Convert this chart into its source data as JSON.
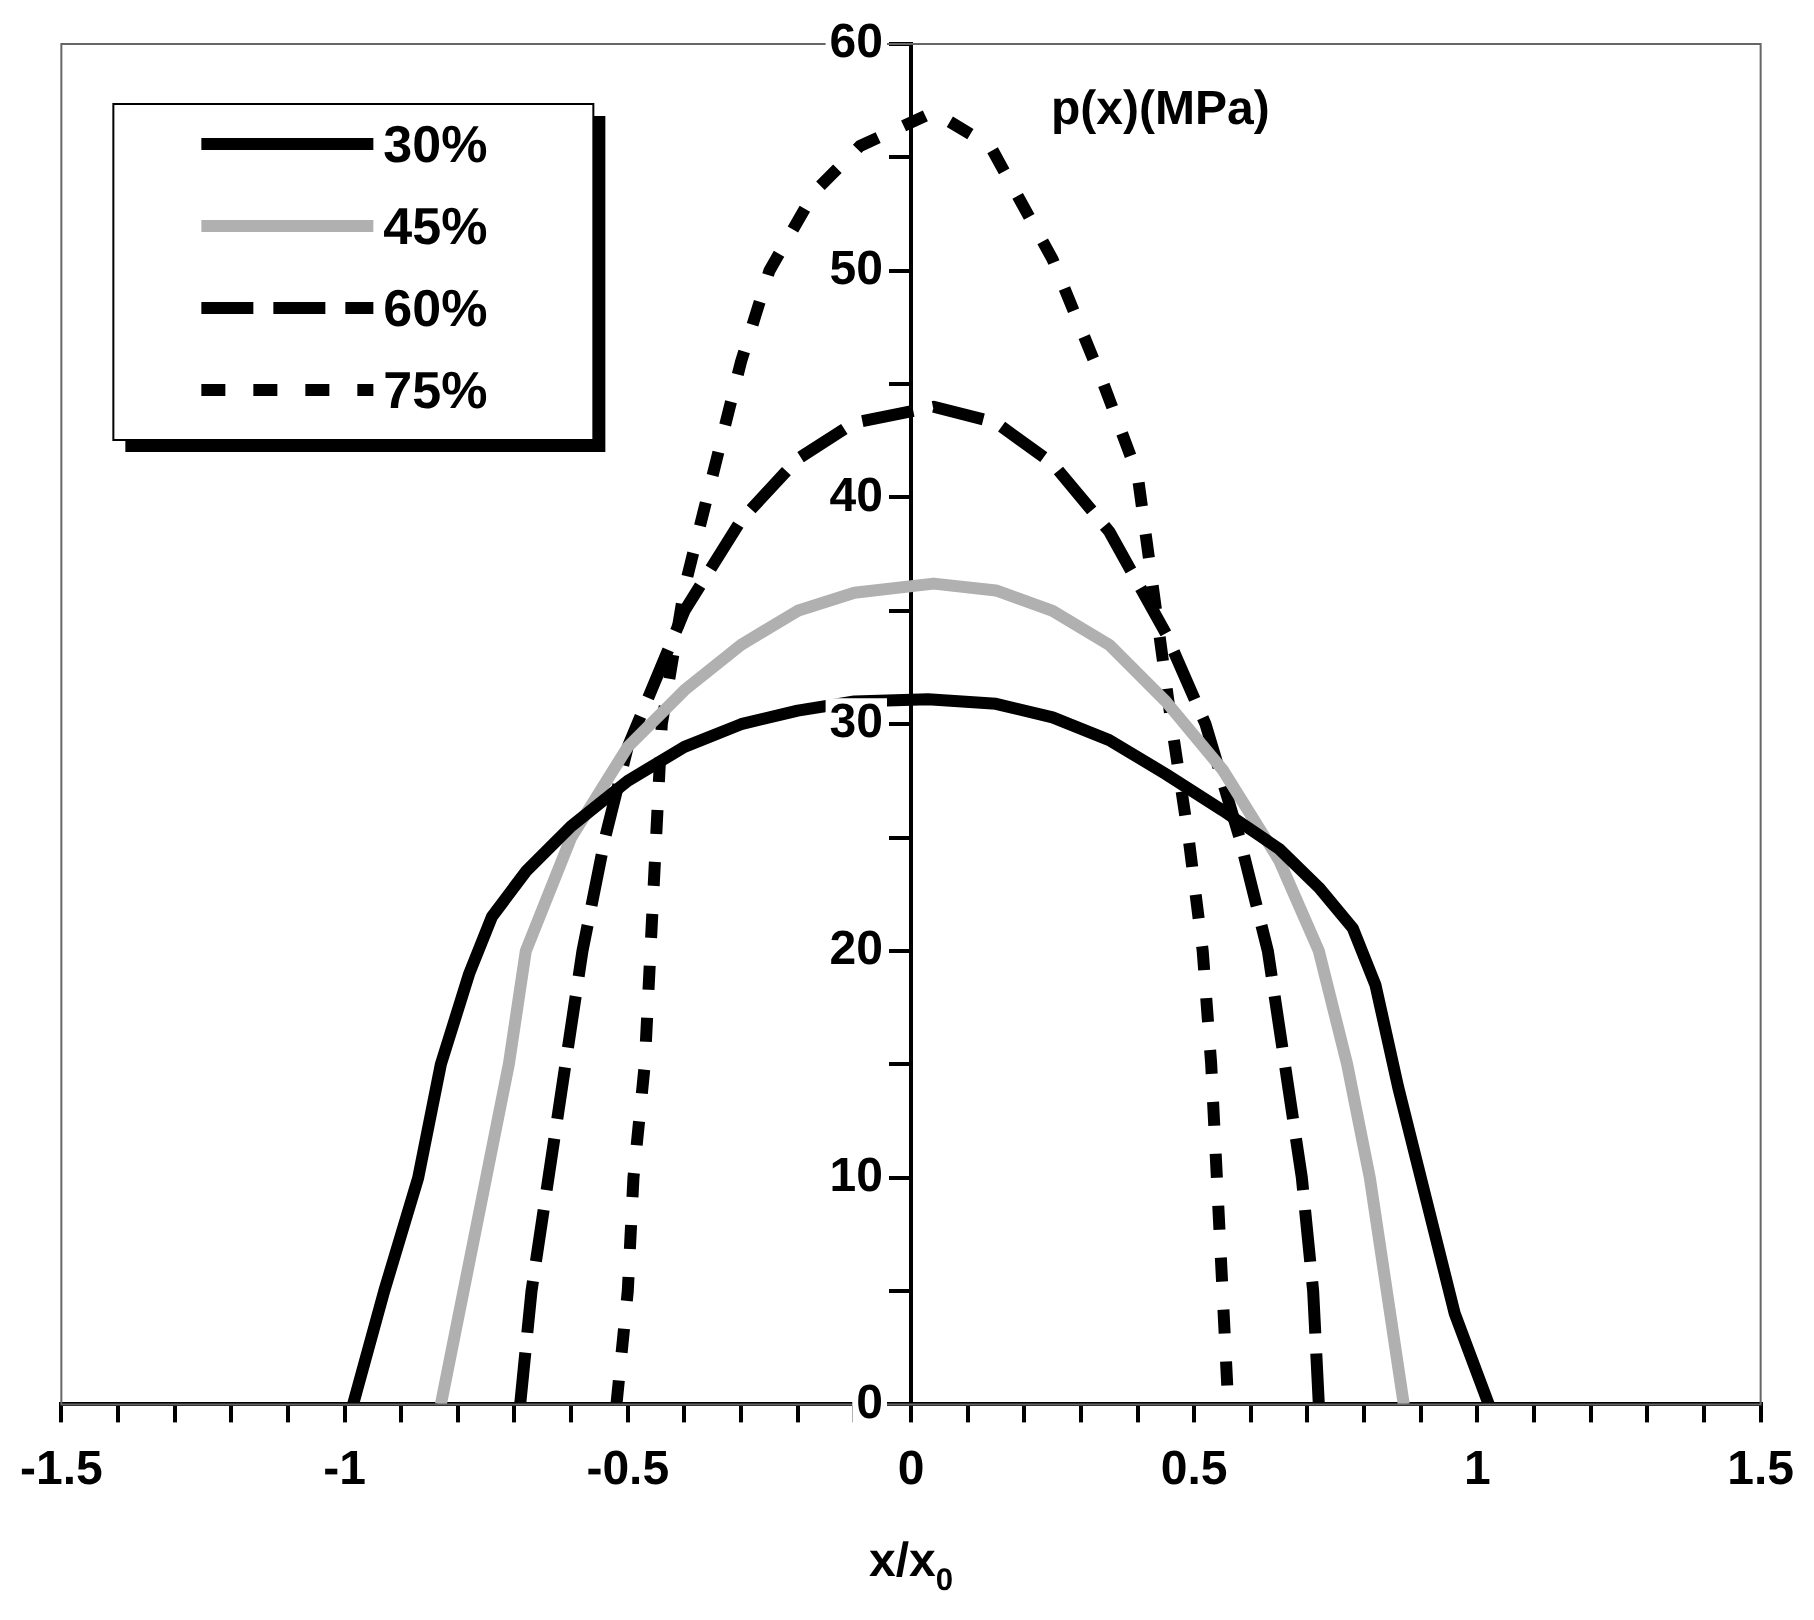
{
  "chart_data": {
    "type": "line",
    "xlabel": "x/x$_{0}$",
    "ylabel": "p(x)(MPa)",
    "xlim": [
      -1.5,
      1.5
    ],
    "xticks": [
      -1.5,
      {
        "value": -1.4,
        "label": null
      },
      {
        "value": -1.3,
        "label": null
      },
      {
        "value": -1.2,
        "label": null
      },
      {
        "value": -1.1,
        "label": null
      },
      -1,
      {
        "value": -0.9,
        "label": null
      },
      {
        "value": -0.8,
        "label": null
      },
      {
        "value": -0.7,
        "label": null
      },
      {
        "value": -0.6,
        "label": null
      },
      -0.5,
      {
        "value": -0.4,
        "label": null
      },
      {
        "value": -0.3,
        "label": null
      },
      {
        "value": -0.2,
        "label": null
      },
      {
        "value": -0.1,
        "label": null
      },
      0,
      {
        "value": 0.1,
        "label": null
      },
      {
        "value": 0.2,
        "label": null
      },
      {
        "value": 0.3,
        "label": null
      },
      {
        "value": 0.4,
        "label": null
      },
      0.5,
      {
        "value": 0.6,
        "label": null
      },
      {
        "value": 0.7,
        "label": null
      },
      {
        "value": 0.8,
        "label": null
      },
      {
        "value": 0.9,
        "label": null
      },
      1,
      {
        "value": 1.1,
        "label": null
      },
      {
        "value": 1.2,
        "label": null
      },
      {
        "value": 1.3,
        "label": null
      },
      {
        "value": 1.4,
        "label": null
      },
      1.5
    ],
    "ylim": [
      0,
      60
    ],
    "yticks": [
      0,
      {
        "value": 5,
        "label": null
      },
      10,
      {
        "value": 15,
        "label": null
      },
      20,
      {
        "value": 25,
        "label": null
      },
      30,
      {
        "value": 35,
        "label": null
      },
      40,
      {
        "value": 45,
        "label": null
      },
      50,
      {
        "value": 55,
        "label": null
      },
      60
    ],
    "grid": false,
    "legend": "top left",
    "marker": "none",
    "series": [
      {
        "name": "30%",
        "color": "#000000",
        "line_style": "solid",
        "x": [
          -0.985,
          -0.93,
          -0.87,
          -0.83,
          -0.78,
          -0.74,
          -0.68,
          -0.6,
          -0.5,
          -0.4,
          -0.3,
          -0.2,
          -0.1,
          0.03,
          0.15,
          0.25,
          0.35,
          0.45,
          0.55,
          0.65,
          0.72,
          0.78,
          0.82,
          0.86,
          0.91,
          0.96,
          1.02
        ],
        "values": [
          0,
          5,
          10,
          15,
          19,
          21.5,
          23.5,
          25.5,
          27.5,
          29,
          30,
          30.6,
          31,
          31.1,
          30.9,
          30.3,
          29.3,
          27.8,
          26.2,
          24.5,
          22.8,
          21,
          18.5,
          14,
          9,
          4,
          0
        ]
      },
      {
        "name": "45%",
        "color": "#b0b0b0",
        "line_style": "solid",
        "x": [
          -0.83,
          -0.79,
          -0.75,
          -0.71,
          -0.68,
          -0.6,
          -0.5,
          -0.4,
          -0.3,
          -0.2,
          -0.1,
          0.04,
          0.15,
          0.25,
          0.35,
          0.45,
          0.55,
          0.65,
          0.72,
          0.77,
          0.81,
          0.84,
          0.87
        ],
        "values": [
          0,
          5,
          10,
          15,
          20,
          25,
          29,
          31.5,
          33.5,
          35,
          35.8,
          36.2,
          35.9,
          35,
          33.5,
          31,
          28,
          24,
          20,
          15,
          10,
          5,
          0
        ]
      },
      {
        "name": "60%",
        "color": "#000000",
        "line_style": "dashed",
        "x": [
          -0.69,
          -0.67,
          -0.64,
          -0.61,
          -0.58,
          -0.54,
          -0.5,
          -0.4,
          -0.3,
          -0.2,
          -0.1,
          0.04,
          0.15,
          0.25,
          0.35,
          0.45,
          0.52,
          0.58,
          0.63,
          0.66,
          0.69,
          0.71,
          0.72
        ],
        "values": [
          0,
          5,
          10,
          15,
          20,
          25,
          29,
          35,
          39,
          41.7,
          43.3,
          44,
          43.3,
          41.5,
          38.5,
          34,
          30,
          25,
          20,
          15,
          10,
          5,
          0
        ]
      },
      {
        "name": "75%",
        "color": "#000000",
        "line_style": "dotted",
        "x": [
          -0.52,
          -0.5,
          -0.49,
          -0.47,
          -0.46,
          -0.45,
          -0.44,
          -0.4,
          -0.36,
          -0.3,
          -0.25,
          -0.17,
          -0.09,
          0.04,
          0.14,
          0.25,
          0.34,
          0.4,
          0.46,
          0.49,
          0.515,
          0.53,
          0.54,
          0.55,
          0.56
        ],
        "values": [
          0,
          5,
          10,
          15,
          20,
          25,
          30,
          36,
          40,
          46,
          50,
          53.5,
          55.5,
          57,
          55.5,
          50.5,
          45,
          41,
          30,
          25,
          20,
          15,
          10,
          5,
          0
        ]
      }
    ]
  }
}
